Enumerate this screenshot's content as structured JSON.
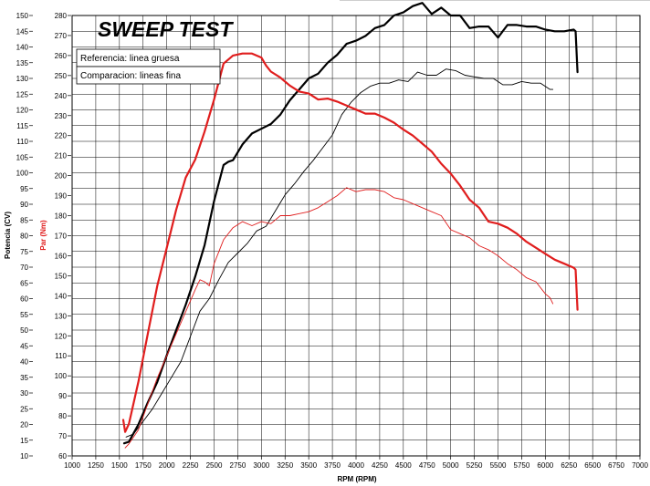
{
  "chart_data": {
    "type": "line",
    "title": "SWEEP TEST",
    "xlabel": "RPM (RPM)",
    "ylabel_left": "Potencia (CV)",
    "ylabel_right": "Par (Nm)",
    "xlim": [
      1000,
      7000
    ],
    "x_ticks": [
      1000,
      1250,
      1500,
      1750,
      2000,
      2250,
      2500,
      2750,
      3000,
      3250,
      3500,
      3750,
      4000,
      4250,
      4500,
      4750,
      5000,
      5250,
      5500,
      5750,
      6000,
      6250,
      6500,
      6750,
      7000
    ],
    "potencia_axis": {
      "range": [
        10,
        150
      ],
      "ticks": [
        10,
        15,
        20,
        25,
        30,
        35,
        40,
        45,
        50,
        55,
        60,
        65,
        70,
        75,
        80,
        85,
        90,
        95,
        100,
        105,
        110,
        115,
        120,
        125,
        130,
        135,
        140,
        145,
        150
      ]
    },
    "par_axis": {
      "range": [
        60,
        280
      ],
      "ticks": [
        60,
        70,
        80,
        90,
        100,
        110,
        120,
        130,
        140,
        150,
        160,
        170,
        180,
        190,
        200,
        210,
        220,
        230,
        240,
        250,
        260,
        270,
        280
      ]
    },
    "legend": [
      "Referencia: linea gruesa",
      "Comparacion: lineas fina"
    ],
    "grid": true,
    "legend_placement": "top-left",
    "series": [
      {
        "color": "#000000",
        "width": "thick",
        "axis": "potencia",
        "x": [
          1550,
          1600,
          1700,
          1800,
          1900,
          2000,
          2100,
          2200,
          2300,
          2400,
          2500,
          2600,
          2650,
          2700,
          2800,
          2900,
          3000,
          3100,
          3200,
          3300,
          3400,
          3500,
          3600,
          3700,
          3800,
          3900,
          4000,
          4100,
          4200,
          4300,
          4400,
          4500,
          4600,
          4700,
          4800,
          4900,
          5000,
          5100,
          5200,
          5300,
          5400,
          5500,
          5600,
          5700,
          5800,
          5900,
          6000,
          6100,
          6200,
          6300,
          6320,
          6340
        ],
        "values": [
          14,
          14.5,
          20,
          27,
          33.5,
          42,
          50,
          58,
          67,
          77,
          91,
          102.5,
          103.5,
          104,
          109,
          112.5,
          114,
          115.5,
          118.5,
          123,
          126.5,
          130,
          131.5,
          135,
          137.5,
          141,
          142,
          143.5,
          146,
          147,
          150,
          151,
          153,
          154,
          150.5,
          152.5,
          150,
          150,
          146,
          146.5,
          146.5,
          143,
          147,
          147,
          146.5,
          146.5,
          145.5,
          145,
          145,
          145.5,
          145,
          132
        ]
      },
      {
        "color": "#000000",
        "width": "thin",
        "axis": "potencia",
        "x": [
          1570,
          1650,
          1750,
          1850,
          1950,
          2050,
          2150,
          2250,
          2350,
          2450,
          2550,
          2650,
          2750,
          2850,
          2950,
          3050,
          3150,
          3250,
          3350,
          3450,
          3550,
          3650,
          3750,
          3850,
          3950,
          4050,
          4150,
          4250,
          4350,
          4450,
          4550,
          4650,
          4750,
          4850,
          4950,
          5050,
          5150,
          5250,
          5350,
          5450,
          5550,
          5650,
          5750,
          5850,
          5950,
          6050,
          6080
        ],
        "values": [
          16,
          17,
          21,
          25,
          30,
          35,
          40,
          48,
          56,
          60,
          66,
          71.5,
          74.5,
          77.5,
          81.5,
          83,
          88,
          93,
          96.5,
          100.5,
          104,
          108,
          112,
          118.5,
          122.5,
          125.5,
          127.5,
          128.5,
          128.5,
          129.5,
          129,
          132,
          131,
          131,
          133,
          132.5,
          131,
          130.5,
          130,
          130,
          128,
          128,
          129,
          128.5,
          128.5,
          126.5,
          126.5
        ]
      },
      {
        "color": "#e01e1e",
        "width": "thick",
        "axis": "par",
        "x": [
          1540,
          1560,
          1600,
          1700,
          1800,
          1900,
          2000,
          2100,
          2200,
          2300,
          2400,
          2500,
          2600,
          2650,
          2700,
          2800,
          2900,
          3000,
          3050,
          3100,
          3200,
          3300,
          3400,
          3500,
          3600,
          3700,
          3800,
          3900,
          4000,
          4100,
          4200,
          4300,
          4400,
          4500,
          4600,
          4700,
          4800,
          4900,
          5000,
          5100,
          5200,
          5300,
          5400,
          5500,
          5600,
          5700,
          5800,
          5900,
          6000,
          6100,
          6200,
          6300,
          6320,
          6340
        ],
        "values": [
          78,
          72,
          76,
          97,
          121,
          145,
          164,
          183,
          199,
          208,
          222,
          238,
          256,
          258,
          260,
          261,
          261,
          259,
          255,
          252,
          249,
          245,
          242,
          241,
          238,
          238.5,
          237,
          235,
          233,
          231,
          231,
          229,
          226.5,
          223,
          220,
          216,
          212,
          206,
          201,
          195,
          188,
          184,
          177,
          176,
          174,
          171,
          167,
          164,
          161,
          158,
          156,
          154,
          153,
          133
        ]
      },
      {
        "color": "#e01e1e",
        "width": "thin",
        "axis": "par",
        "x": [
          1560,
          1600,
          1700,
          1800,
          1900,
          2000,
          2100,
          2200,
          2300,
          2350,
          2400,
          2450,
          2500,
          2600,
          2700,
          2800,
          2900,
          3000,
          3100,
          3200,
          3300,
          3400,
          3500,
          3600,
          3700,
          3800,
          3900,
          4000,
          4100,
          4200,
          4300,
          4400,
          4500,
          4600,
          4700,
          4800,
          4900,
          5000,
          5100,
          5200,
          5300,
          5400,
          5500,
          5600,
          5700,
          5800,
          5900,
          6000,
          6050,
          6080
        ],
        "values": [
          64,
          66,
          73,
          86,
          99,
          110,
          121,
          132,
          143,
          148,
          147,
          145,
          156,
          168,
          174,
          177,
          175,
          177,
          176,
          180,
          180,
          181,
          182,
          184,
          187,
          190,
          194,
          192,
          193,
          193,
          192,
          189,
          188,
          186,
          184,
          182,
          180,
          173,
          171,
          169,
          165,
          163,
          160,
          156,
          153,
          149,
          147,
          141,
          139,
          136
        ]
      }
    ]
  }
}
